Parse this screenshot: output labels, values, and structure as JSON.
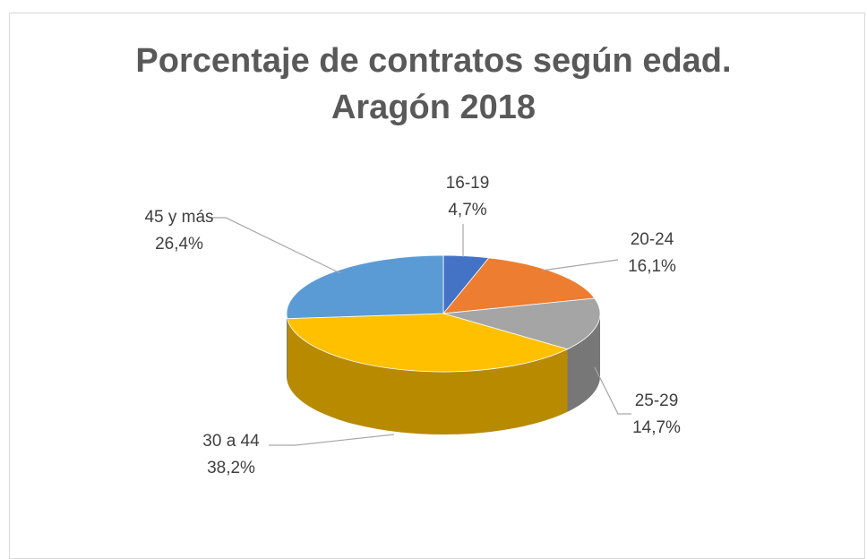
{
  "chart_data": {
    "type": "pie3d",
    "title": "Porcentaje de contratos según edad. Aragón 2018",
    "categories": [
      "16-19",
      "20-24",
      "25-29",
      "30 a 44",
      "45 y más"
    ],
    "values": [
      4.7,
      16.1,
      14.7,
      38.2,
      26.4
    ],
    "value_labels": [
      "4,7%",
      "16,1%",
      "14,7%",
      "38,2%",
      "26,4%"
    ],
    "colors": [
      "#4472c4",
      "#ed7d31",
      "#a5a5a5",
      "#ffc000",
      "#5b9bd5"
    ]
  }
}
